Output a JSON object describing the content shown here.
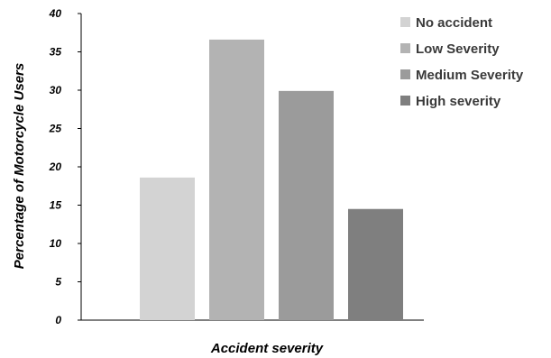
{
  "chart_data": {
    "type": "bar",
    "xlabel": "Accident severity",
    "ylabel": "Percentage of Motorcycle Users",
    "ylim": [
      0,
      40
    ],
    "yticks": [
      0,
      5,
      10,
      15,
      20,
      25,
      30,
      35,
      40
    ],
    "grid": false,
    "legend_position": "top-right",
    "series": [
      {
        "name": "No accident",
        "value": 18.6,
        "color": "#d3d3d3"
      },
      {
        "name": "Low Severity",
        "value": 36.6,
        "color": "#b3b3b3"
      },
      {
        "name": "Medium Severity",
        "value": 29.9,
        "color": "#9b9b9b"
      },
      {
        "name": "High severity",
        "value": 14.5,
        "color": "#7f7f7f"
      }
    ]
  }
}
